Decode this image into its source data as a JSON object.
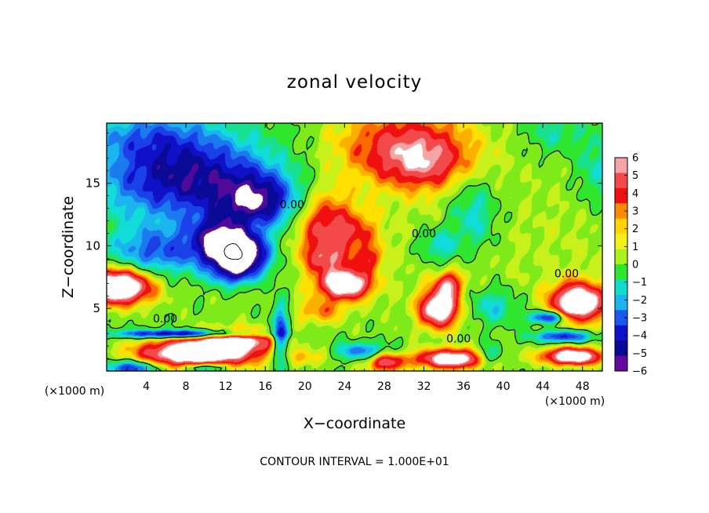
{
  "chart_data": {
    "type": "heatmap",
    "title": "zonal velocity",
    "xlabel": "X−coordinate",
    "ylabel": "Z−coordinate",
    "x_unit_left": "(×1000 m)",
    "x_unit_right": "(×1000 m)",
    "footer": "CONTOUR INTERVAL = 1.000E+01",
    "xlim": [
      0,
      50
    ],
    "ylim": [
      0,
      19.8
    ],
    "x_ticks": [
      4,
      8,
      12,
      16,
      20,
      24,
      28,
      32,
      36,
      40,
      44,
      48
    ],
    "x_tick_labels": [
      "4",
      "8",
      "12",
      "16",
      "20",
      "24",
      "28",
      "32",
      "36",
      "40",
      "44",
      "48"
    ],
    "y_ticks": [
      5,
      10,
      15
    ],
    "y_tick_labels": [
      "5",
      "10",
      "15"
    ],
    "colorbar": {
      "levels": [
        6,
        5,
        4,
        3,
        2,
        1,
        0,
        -1,
        -2,
        -3,
        -4,
        -5,
        -6
      ],
      "labels": [
        "6",
        "5",
        "4",
        "3",
        "2",
        "1",
        "0",
        "−1",
        "−2",
        "−3",
        "−4",
        "−5",
        "−6"
      ],
      "colors": [
        "#f4a6a6",
        "#f24a4a",
        "#f01010",
        "#fb8c00",
        "#ffd400",
        "#f2f21a",
        "#aaf21a",
        "#2ee62e",
        "#11dcc8",
        "#1ab4ee",
        "#1a58ee",
        "#1010c8",
        "#0a0a96",
        "#640aa0"
      ],
      "bands": [
        {
          "lo": 6,
          "hi": 99,
          "color": "#ffffff"
        },
        {
          "lo": 5.5,
          "hi": 6,
          "color": "#f4a6a6"
        },
        {
          "lo": 4.5,
          "hi": 5.5,
          "color": "#f24a4a"
        },
        {
          "lo": 3.5,
          "hi": 4.5,
          "color": "#f01010"
        },
        {
          "lo": 2.8,
          "hi": 3.5,
          "color": "#fb6a00"
        },
        {
          "lo": 2.2,
          "hi": 2.8,
          "color": "#fbb000"
        },
        {
          "lo": 1.5,
          "hi": 2.2,
          "color": "#ffe000"
        },
        {
          "lo": 0.8,
          "hi": 1.5,
          "color": "#c8f01a"
        },
        {
          "lo": 0.0,
          "hi": 0.8,
          "color": "#7eea1a"
        },
        {
          "lo": -0.8,
          "hi": 0.0,
          "color": "#2ee62e"
        },
        {
          "lo": -1.5,
          "hi": -0.8,
          "color": "#19e08e"
        },
        {
          "lo": -2.2,
          "hi": -1.5,
          "color": "#11dcd8"
        },
        {
          "lo": -2.8,
          "hi": -2.2,
          "color": "#1ab4ee"
        },
        {
          "lo": -3.5,
          "hi": -2.8,
          "color": "#1a7aee"
        },
        {
          "lo": -4.2,
          "hi": -3.5,
          "color": "#1a40e8"
        },
        {
          "lo": -5.0,
          "hi": -4.2,
          "color": "#1010c8"
        },
        {
          "lo": -5.7,
          "hi": -5.0,
          "color": "#0a0a96"
        },
        {
          "lo": -6.3,
          "hi": -5.7,
          "color": "#500a9a"
        },
        {
          "lo": -99,
          "hi": -6.3,
          "color": "#ffffff"
        }
      ]
    },
    "contour_labels": [
      {
        "text": "0.00",
        "x": 18.7,
        "z": 13.3
      },
      {
        "text": "0.00",
        "x": 32.0,
        "z": 11.0
      },
      {
        "text": "0.00",
        "x": 5.9,
        "z": 4.2
      },
      {
        "text": "0.00",
        "x": 35.5,
        "z": 2.6
      },
      {
        "text": "0.00",
        "x": 46.4,
        "z": 7.8
      }
    ],
    "field_features": [
      {
        "x": 46,
        "z": 10,
        "sx": 45,
        "sz": 8,
        "a": 0.9
      },
      {
        "x": 8,
        "z": 15.5,
        "sx": 9,
        "sz": 3.6,
        "a": -5.8
      },
      {
        "x": 4,
        "z": 19,
        "sx": 6,
        "sz": 2,
        "a": -2
      },
      {
        "x": 5,
        "z": 9.5,
        "sx": 5,
        "sz": 2.0,
        "a": -3.8
      },
      {
        "x": 15.5,
        "z": 13.5,
        "sx": 4,
        "sz": 2.2,
        "a": -4.8
      },
      {
        "x": 11,
        "z": 10.5,
        "sx": 2.7,
        "sz": 2.0,
        "a": -4.5
      },
      {
        "x": 13.5,
        "z": 9.3,
        "sx": 2.8,
        "sz": 1.7,
        "a": -9.0
      },
      {
        "x": 12.5,
        "z": 7.6,
        "sx": 2.2,
        "sz": 0.9,
        "a": -2
      },
      {
        "x": 1,
        "z": 6.8,
        "sx": 3.5,
        "sz": 1.4,
        "a": 9.5
      },
      {
        "x": 8,
        "z": 3.0,
        "sx": 7,
        "sz": 0.35,
        "a": -7.0
      },
      {
        "x": 9,
        "z": 1.4,
        "sx": 6,
        "sz": 1.2,
        "a": 8.5
      },
      {
        "x": 13,
        "z": 2.5,
        "sx": 4,
        "sz": 0.9,
        "a": 6.0
      },
      {
        "x": 2.5,
        "z": 0.3,
        "sx": 3,
        "sz": 0.6,
        "a": -5.0
      },
      {
        "x": 10,
        "z": 0.3,
        "sx": 2,
        "sz": 0.4,
        "a": -5.0
      },
      {
        "x": 17.5,
        "z": 3,
        "sx": 0.8,
        "sz": 2.5,
        "a": -5.0
      },
      {
        "x": 30,
        "z": 18,
        "sx": 7,
        "sz": 3.0,
        "a": 4.5
      },
      {
        "x": 32,
        "z": 16.5,
        "sx": 4,
        "sz": 2,
        "a": 2.5
      },
      {
        "x": 22,
        "z": 11.5,
        "sx": 3.0,
        "sz": 2.8,
        "a": 4.5
      },
      {
        "x": 25.5,
        "z": 11,
        "sx": 2.2,
        "sz": 1.6,
        "a": 2.2
      },
      {
        "x": 24,
        "z": 7.0,
        "sx": 2.6,
        "sz": 1.2,
        "a": 8.0
      },
      {
        "x": 22,
        "z": 9,
        "sx": 2,
        "sz": 1,
        "a": 3
      },
      {
        "x": 26.5,
        "z": 9,
        "sx": 1.3,
        "sz": 0.9,
        "a": 3.0
      },
      {
        "x": 21.5,
        "z": 4.8,
        "sx": 2.5,
        "sz": 1,
        "a": 2.5
      },
      {
        "x": 33.5,
        "z": 5.0,
        "sx": 2.0,
        "sz": 1.5,
        "a": 7.5
      },
      {
        "x": 34.5,
        "z": 7,
        "sx": 1.3,
        "sz": 1,
        "a": 4.5
      },
      {
        "x": 37,
        "z": 12.5,
        "sx": 2.5,
        "sz": 3,
        "a": -2.5
      },
      {
        "x": 33.5,
        "z": 10,
        "sx": 2,
        "sz": 1.4,
        "a": -2.5
      },
      {
        "x": 39,
        "z": 5.2,
        "sx": 2.5,
        "sz": 1.5,
        "a": -2.5
      },
      {
        "x": 47.5,
        "z": 5.5,
        "sx": 2.6,
        "sz": 1.5,
        "a": 8.5
      },
      {
        "x": 44.5,
        "z": 4.3,
        "sx": 2.0,
        "sz": 0.5,
        "a": -5.5
      },
      {
        "x": 47,
        "z": 1.2,
        "sx": 3,
        "sz": 0.7,
        "a": 8.0
      },
      {
        "x": 46,
        "z": 2.8,
        "sx": 3,
        "sz": 0.5,
        "a": -5.0
      },
      {
        "x": 35,
        "z": 1.0,
        "sx": 4,
        "sz": 0.8,
        "a": 7.5
      },
      {
        "x": 26,
        "z": 1.6,
        "sx": 3,
        "sz": 0.7,
        "a": -4.0
      },
      {
        "x": 28,
        "z": 0.8,
        "sx": 2,
        "sz": 0.9,
        "a": 5.0
      },
      {
        "x": 38.5,
        "z": 1.2,
        "sx": 1.6,
        "sz": 0.8,
        "a": -4.0
      },
      {
        "x": 20.5,
        "z": 1.2,
        "sx": 2,
        "sz": 0.7,
        "a": 2.0
      },
      {
        "x": 49.5,
        "z": 16,
        "sx": 2,
        "sz": 3,
        "a": -2.0
      },
      {
        "x": 45,
        "z": 19,
        "sx": 3,
        "sz": 1.5,
        "a": -1.5
      }
    ]
  }
}
